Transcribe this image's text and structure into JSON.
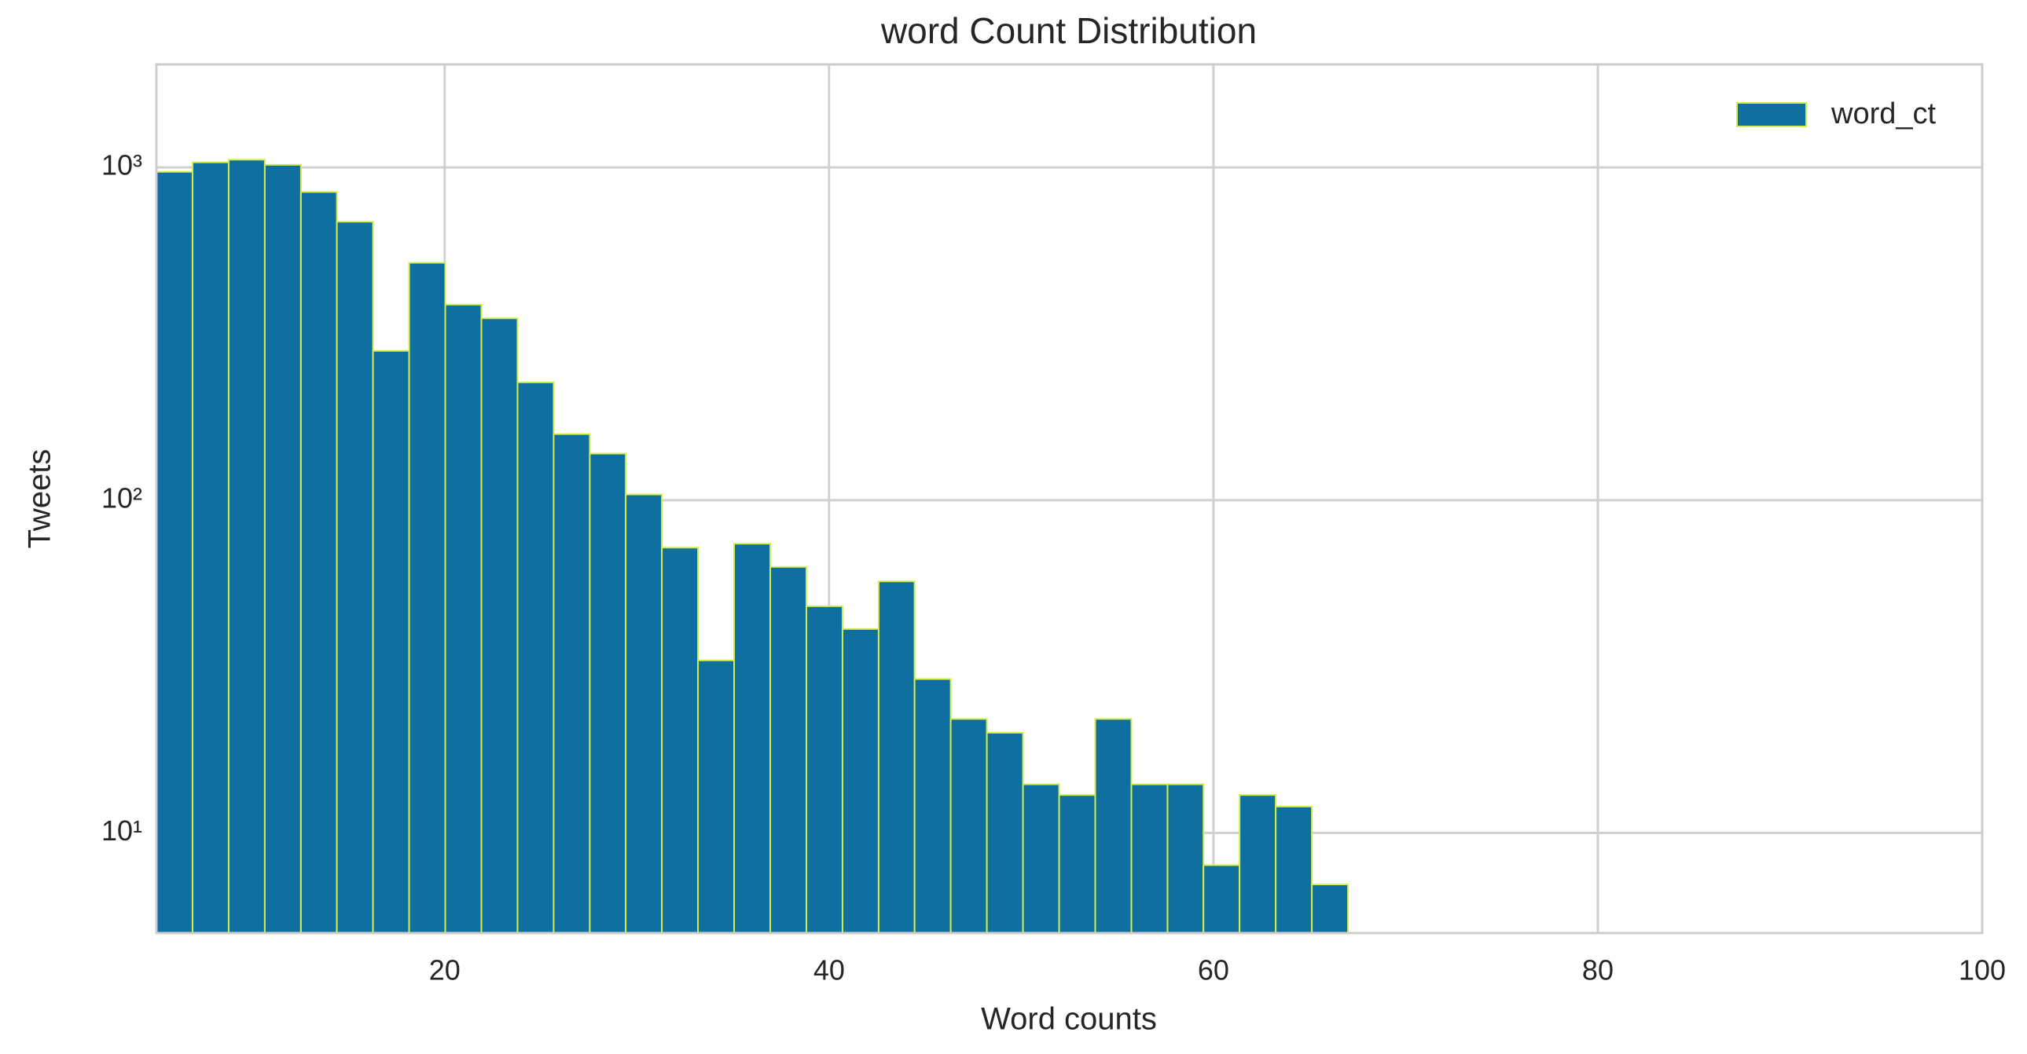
{
  "chart_data": {
    "type": "histogram",
    "title": "word Count Distribution",
    "x_label": "Word counts",
    "y_label": "Tweets",
    "bins": [
      5,
      6.88,
      8.76,
      10.64,
      12.52,
      14.39,
      16.27,
      18.15,
      20.03,
      21.91,
      23.79,
      25.67,
      27.55,
      29.42,
      31.3,
      33.18,
      35.06,
      36.94,
      38.82,
      40.7,
      42.58,
      44.45,
      46.33,
      48.21,
      50.09,
      51.97,
      53.85,
      55.73,
      57.61,
      59.48,
      61.36,
      63.24,
      65.12,
      67
    ],
    "series": [
      {
        "name": "word_ct",
        "color": "#0e6fa0",
        "edgecolor": "#d4ec4c",
        "values": [
          970,
          1036,
          1055,
          1018,
          844,
          687,
          281,
          517,
          387,
          352,
          226,
          158,
          138,
          104,
          72,
          33,
          74,
          63,
          48,
          41,
          57,
          29,
          22,
          20,
          14,
          13,
          22,
          14,
          14,
          8,
          13,
          12,
          7
        ]
      }
    ],
    "xlim": [
      5,
      100
    ],
    "xticks": [
      20,
      40,
      60,
      80,
      100
    ],
    "ylim": [
      5,
      2040
    ],
    "yticks": [
      {
        "value": 10,
        "label": "10¹"
      },
      {
        "value": 100,
        "label": "10²"
      },
      {
        "value": 1000,
        "label": "10³"
      }
    ],
    "y_scale": "log",
    "grid": true,
    "legend": "upper right"
  }
}
